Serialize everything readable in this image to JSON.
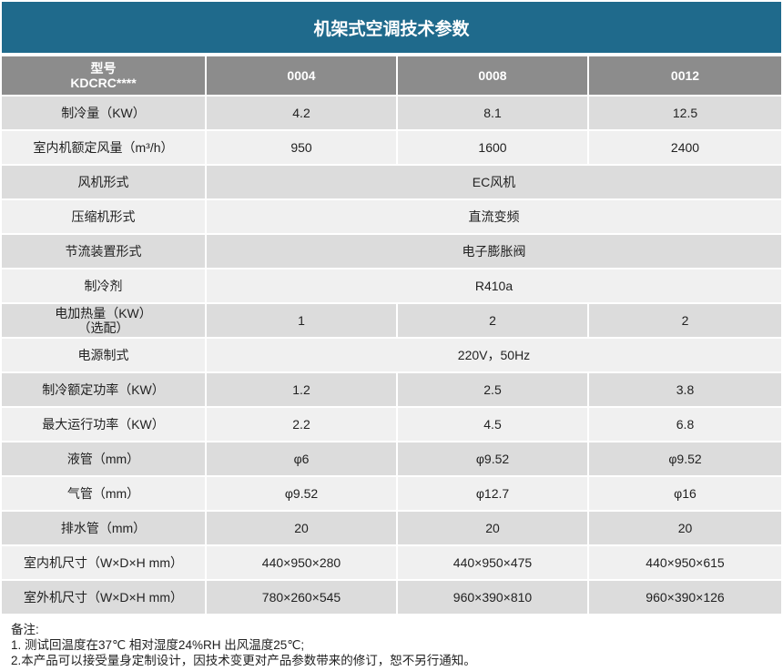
{
  "title": "机架式空调技术参数",
  "table": {
    "header": [
      [
        "型号",
        "KDCRC****"
      ],
      "0004",
      "0008",
      "0012"
    ],
    "rows": [
      [
        "制冷量（KW）",
        "4.2",
        "8.1",
        "12.5"
      ],
      [
        "室内机额定风量（m³/h）",
        "950",
        "1600",
        "2400"
      ],
      [
        "风机形式",
        "EC风机"
      ],
      [
        "压缩机形式",
        "直流变频"
      ],
      [
        "节流装置形式",
        "电子膨胀阀"
      ],
      [
        "制冷剂",
        "R410a"
      ],
      [
        [
          "电加热量（KW）",
          "（选配）"
        ],
        "1",
        "2",
        "2"
      ],
      [
        "电源制式",
        "220V，50Hz"
      ],
      [
        "制冷额定功率（KW）",
        "1.2",
        "2.5",
        "3.8"
      ],
      [
        "最大运行功率（KW）",
        "2.2",
        "4.5",
        "6.8"
      ],
      [
        "液管（mm）",
        "φ6",
        "φ9.52",
        "φ9.52"
      ],
      [
        "气管（mm）",
        "φ9.52",
        "φ12.7",
        "φ16"
      ],
      [
        "排水管（mm）",
        "20",
        "20",
        "20"
      ],
      [
        "室内机尺寸（W×D×H mm）",
        "440×950×280",
        "440×950×475",
        "440×950×615"
      ],
      [
        "室外机尺寸（W×D×H mm）",
        "780×260×545",
        "960×390×810",
        "960×390×126"
      ]
    ]
  },
  "notes": [
    "备注:",
    "1. 测试回温度在37℃ 相对湿度24%RH 出风温度25℃;",
    "2.本产品可以接受量身定制设计，因技术变更对产品参数带来的修订，恕不另行通知。"
  ]
}
